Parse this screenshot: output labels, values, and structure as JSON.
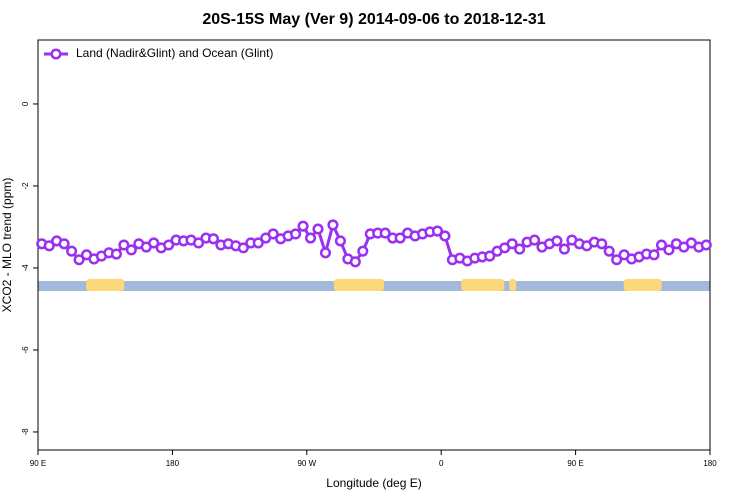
{
  "chart_data": {
    "type": "line",
    "title": "20S-15S May (Ver 9)   2014-09-06 to 2018-12-31",
    "x_label": "Longitude (deg E)",
    "y_label": "XCO2 - MLO trend (ppm)",
    "xlim": [
      90,
      540
    ],
    "ylim": [
      -8.44,
      1.56
    ],
    "xticks": [
      {
        "value": 90,
        "label": "90 E"
      },
      {
        "value": 180,
        "label": "180"
      },
      {
        "value": 270,
        "label": "90 W"
      },
      {
        "value": 360,
        "label": "0"
      },
      {
        "value": 450,
        "label": "90 E"
      },
      {
        "value": 540,
        "label": "180"
      }
    ],
    "yticks": [
      -8,
      -6,
      -4,
      -2,
      0
    ],
    "legend": "top-left",
    "x": [
      92.5,
      97.5,
      102.5,
      107.5,
      112.5,
      117.5,
      122.5,
      127.5,
      132.5,
      137.5,
      142.5,
      147.5,
      152.5,
      157.5,
      162.5,
      167.5,
      172.5,
      177.5,
      182.5,
      187.5,
      192.5,
      197.5,
      202.5,
      207.5,
      212.5,
      217.5,
      222.5,
      227.5,
      232.5,
      237.5,
      242.5,
      247.5,
      252.5,
      257.5,
      262.5,
      267.5,
      272.5,
      277.5,
      282.5,
      287.5,
      292.5,
      297.5,
      302.5,
      307.5,
      312.5,
      317.5,
      322.5,
      327.5,
      332.5,
      337.5,
      342.5,
      347.5,
      352.5,
      357.5,
      362.5,
      367.5,
      372.5,
      377.5,
      382.5,
      387.5,
      392.5,
      397.5,
      402.5,
      407.5,
      412.5,
      417.5,
      422.5,
      427.5,
      432.5,
      437.5,
      442.5,
      447.5,
      452.5,
      457.5,
      462.5,
      467.5,
      472.5,
      477.5,
      482.5,
      487.5,
      492.5,
      497.5,
      502.5,
      507.5,
      512.5,
      517.5,
      522.5,
      527.5,
      532.5,
      537.5
    ],
    "series": [
      {
        "name": "Land (Nadir&Glint) and Ocean (Glint)",
        "color": "#9b30f0",
        "values": [
          -3.41,
          -3.46,
          -3.34,
          -3.41,
          -3.59,
          -3.8,
          -3.68,
          -3.78,
          -3.71,
          -3.63,
          -3.66,
          -3.44,
          -3.56,
          -3.41,
          -3.49,
          -3.39,
          -3.51,
          -3.44,
          -3.32,
          -3.34,
          -3.32,
          -3.39,
          -3.27,
          -3.29,
          -3.44,
          -3.41,
          -3.46,
          -3.51,
          -3.39,
          -3.39,
          -3.27,
          -3.17,
          -3.29,
          -3.22,
          -3.17,
          -2.98,
          -3.27,
          -3.05,
          -3.63,
          -2.95,
          -3.34,
          -3.78,
          -3.85,
          -3.59,
          -3.17,
          -3.15,
          -3.15,
          -3.27,
          -3.27,
          -3.15,
          -3.22,
          -3.17,
          -3.12,
          -3.1,
          -3.22,
          -3.8,
          -3.76,
          -3.83,
          -3.76,
          -3.73,
          -3.71,
          -3.59,
          -3.51,
          -3.41,
          -3.54,
          -3.37,
          -3.32,
          -3.49,
          -3.41,
          -3.34,
          -3.54,
          -3.32,
          -3.41,
          -3.46,
          -3.37,
          -3.41,
          -3.59,
          -3.8,
          -3.68,
          -3.78,
          -3.73,
          -3.66,
          -3.68,
          -3.44,
          -3.56,
          -3.41,
          -3.49,
          -3.39,
          -3.49,
          -3.44
        ]
      }
    ],
    "surface_band": {
      "ocean_color": "#a3b9dc",
      "land_color": "#fdd87a",
      "land_ranges": [
        [
          122.2,
          147.8
        ],
        [
          288.1,
          321.7
        ],
        [
          373.4,
          402.2
        ],
        [
          405.6,
          410.3
        ],
        [
          482.2,
          507.7
        ]
      ]
    }
  }
}
